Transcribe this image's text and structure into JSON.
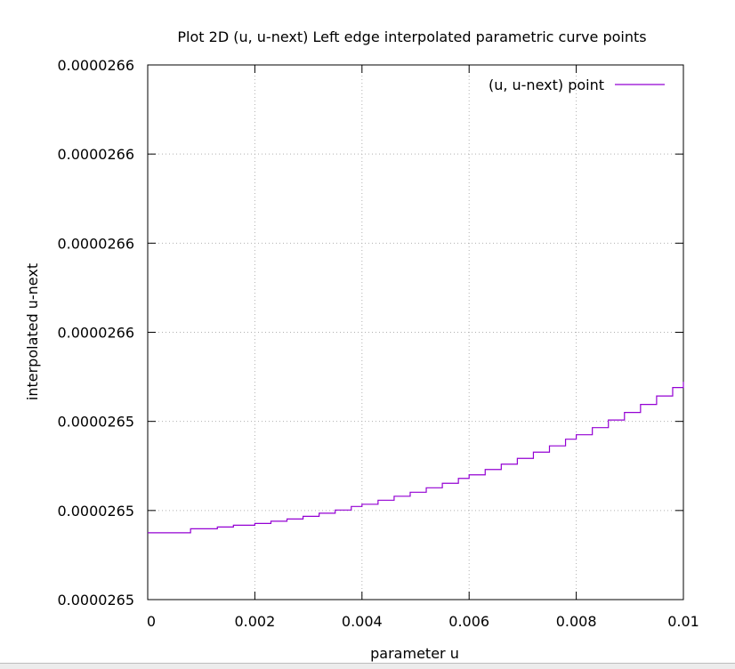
{
  "chart_data": {
    "type": "line",
    "title": "Plot 2D (u, u-next) Left edge interpolated parametric curve points",
    "xlabel": "parameter u",
    "ylabel": "interpolated u-next",
    "xlim": [
      0,
      0.01
    ],
    "ylim": [
      2.654e-05,
      2.666e-05
    ],
    "x_ticks": [
      {
        "value": 0,
        "label": "0"
      },
      {
        "value": 0.002,
        "label": "0.002"
      },
      {
        "value": 0.004,
        "label": "0.004"
      },
      {
        "value": 0.006,
        "label": "0.006"
      },
      {
        "value": 0.008,
        "label": "0.008"
      },
      {
        "value": 0.01,
        "label": "0.01"
      }
    ],
    "y_ticks": [
      {
        "value": 2.654e-05,
        "label": "0.0000265"
      },
      {
        "value": 2.656e-05,
        "label": "0.0000265"
      },
      {
        "value": 2.658e-05,
        "label": "0.0000265"
      },
      {
        "value": 2.66e-05,
        "label": "0.0000266"
      },
      {
        "value": 2.662e-05,
        "label": "0.0000266"
      },
      {
        "value": 2.664e-05,
        "label": "0.0000266"
      },
      {
        "value": 2.666e-05,
        "label": "0.0000266"
      }
    ],
    "grid": true,
    "legend_position": "top-right",
    "series": [
      {
        "name": "(u, u-next) point",
        "color": "#9400d3",
        "x": [
          0,
          0.0008,
          0.0013,
          0.0016,
          0.002,
          0.0023,
          0.0026,
          0.0029,
          0.0032,
          0.0035,
          0.0038,
          0.004,
          0.0043,
          0.0046,
          0.0049,
          0.0052,
          0.0055,
          0.0058,
          0.006,
          0.0063,
          0.0066,
          0.0069,
          0.0072,
          0.0075,
          0.0078,
          0.008,
          0.0083,
          0.0086,
          0.0089,
          0.0092,
          0.0095,
          0.0098,
          0.01
        ],
        "y": [
          2.6555e-05,
          2.65559e-05,
          2.65563e-05,
          2.65567e-05,
          2.65571e-05,
          2.65576e-05,
          2.65581e-05,
          2.65587e-05,
          2.65594e-05,
          2.65601e-05,
          2.65609e-05,
          2.65614e-05,
          2.65623e-05,
          2.65632e-05,
          2.65641e-05,
          2.65651e-05,
          2.65661e-05,
          2.65672e-05,
          2.6568e-05,
          2.65692e-05,
          2.65704e-05,
          2.65717e-05,
          2.65731e-05,
          2.65745e-05,
          2.6576e-05,
          2.6577e-05,
          2.65786e-05,
          2.65803e-05,
          2.6582e-05,
          2.65838e-05,
          2.65857e-05,
          2.65876e-05,
          2.65889e-05
        ]
      }
    ]
  }
}
